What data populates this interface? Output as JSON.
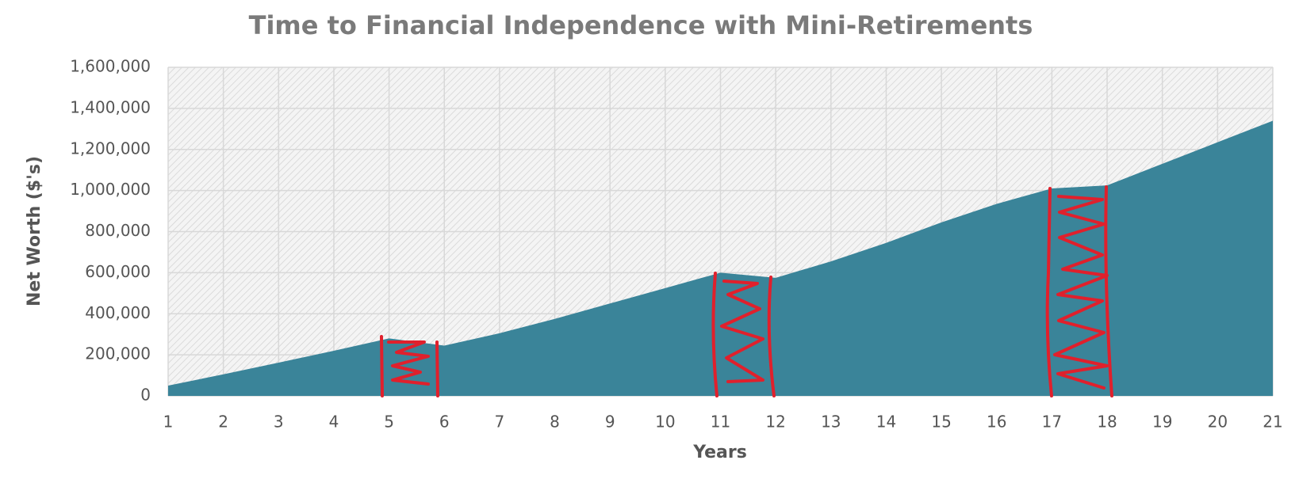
{
  "chart_data": {
    "type": "area",
    "title": "Time to Financial Independence with Mini-Retirements",
    "x_label": "Years",
    "y_label": "Net Worth ($'s)",
    "x": [
      1,
      2,
      3,
      4,
      5,
      6,
      7,
      8,
      9,
      10,
      11,
      12,
      13,
      14,
      15,
      16,
      17,
      18,
      19,
      20,
      21
    ],
    "values": [
      50000,
      105000,
      162000,
      220000,
      280000,
      245000,
      305000,
      375000,
      450000,
      525000,
      600000,
      575000,
      655000,
      745000,
      845000,
      935000,
      1010000,
      1025000,
      1130000,
      1235000,
      1340000
    ],
    "color": "#3a8499",
    "xlim": [
      1,
      21
    ],
    "xticks": [
      1,
      2,
      3,
      4,
      5,
      6,
      7,
      8,
      9,
      10,
      11,
      12,
      13,
      14,
      15,
      16,
      17,
      18,
      19,
      20,
      21
    ],
    "ylim": [
      0,
      1600000
    ],
    "yticks": [
      0,
      {
        "value": 200000,
        "label": "200,000"
      },
      {
        "value": 400000,
        "label": "400,000"
      },
      {
        "value": 600000,
        "label": "600,000"
      },
      {
        "value": 800000,
        "label": "800,000"
      },
      {
        "value": 1000000,
        "label": "1,000,000"
      },
      {
        "value": 1200000,
        "label": "1,200,000"
      },
      {
        "value": 1400000,
        "label": "1,400,000"
      },
      {
        "value": 1600000,
        "label": "1,600,000"
      }
    ],
    "grid": true
  }
}
